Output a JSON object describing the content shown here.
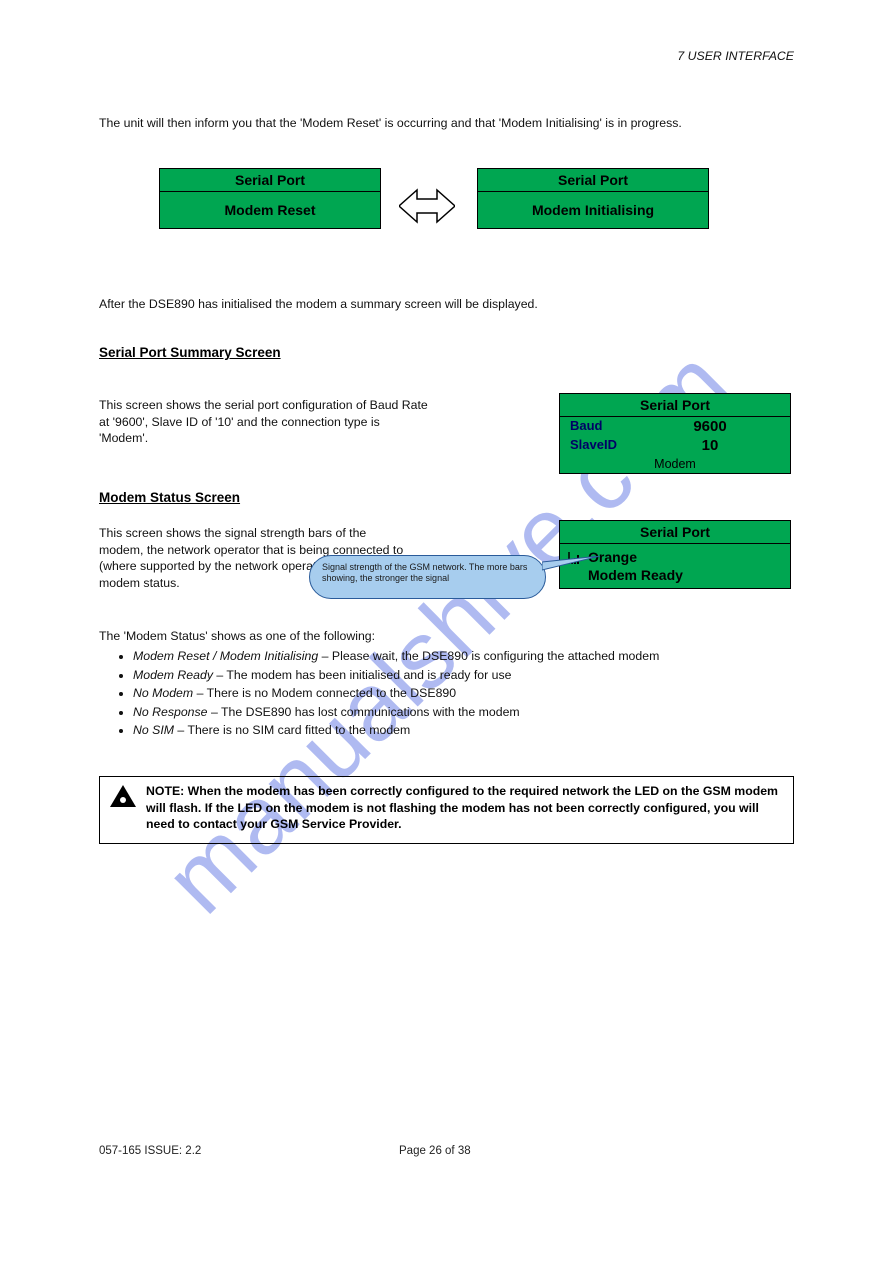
{
  "header_line": "7 USER INTERFACE",
  "intro": "The unit will then inform you that the 'Modem Reset' is occurring and that 'Modem Initialising' is in progress.",
  "panel_reset": {
    "title": "Serial Port",
    "body": "Modem Reset"
  },
  "panel_init": {
    "title": "Serial Port",
    "body": "Modem Initialising"
  },
  "after_init": "After the DSE890 has initialised the modem a summary screen will be displayed.",
  "summary_label": "Serial Port Summary Screen",
  "summary_text_1": "This screen shows the serial port configuration of Baud Rate at '9600', Slave ID of '10' and the connection type is 'Modem'.",
  "panel_summary": {
    "title": "Serial Port",
    "baud_label": "Baud",
    "baud_value": "9600",
    "slave_label": "SlaveID",
    "slave_value": "10",
    "foot": "Modem"
  },
  "status_label": "Modem Status Screen",
  "status_text_1": "This screen shows the signal strength bars of the modem, the network operator that is being connected to (where supported by the network operator) and the modem status.",
  "panel_status": {
    "title": "Serial Port",
    "line1": "Orange",
    "line2": "Modem Ready"
  },
  "bubble_text": "Signal strength of the GSM network. The more bars showing, the stronger the signal",
  "status_list_intro": "The 'Modem Status' shows as one of the following:",
  "status_items": [
    "Modem Reset / Modem Initialising – Please wait, the DSE890 is configuring the attached modem",
    "Modem Ready – The modem has been initialised and is ready for use",
    "No Modem – There is no Modem connected to the DSE890",
    "No Response – The DSE890 has lost communications with the modem",
    "No SIM – There is no SIM card fitted to the modem"
  ],
  "caution_text": "NOTE: When the modem has been correctly configured to the required network the LED on the GSM modem will flash. If the LED on the modem is not flashing the modem has not been correctly configured, you will need to contact your GSM Service Provider.",
  "footer_left": "057-165 ISSUE: 2.2",
  "footer_right": "Page 26 of 38"
}
